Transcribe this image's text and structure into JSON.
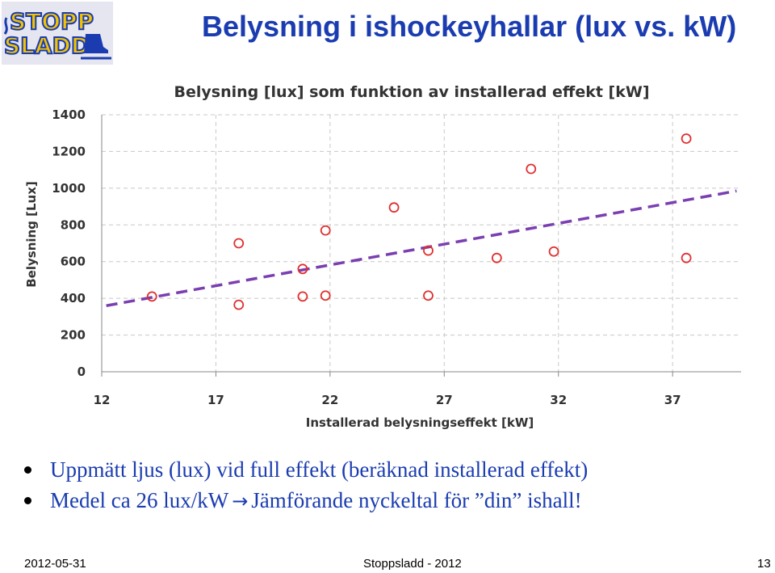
{
  "slide": {
    "title": "Belysning i ishockeyhallar (lux vs. kW)",
    "logo_line1": "STOPP",
    "logo_line2": "SLADD"
  },
  "chart_data": {
    "type": "scatter",
    "title": "Belysning [lux] som funktion av installerad effekt [kW]",
    "xlabel": "Installerad belysningseffekt [kW]",
    "ylabel": "Belysning [Lux]",
    "xlim": [
      12,
      40
    ],
    "ylim": [
      0,
      1400
    ],
    "xticks": [
      12,
      17,
      22,
      27,
      32,
      37
    ],
    "yticks": [
      0,
      200,
      400,
      600,
      800,
      1000,
      1200,
      1400
    ],
    "grid": "dashed",
    "marker_color": "#e03030",
    "trend_color": "#7a3fb0",
    "points": [
      {
        "x": 14.2,
        "y": 410
      },
      {
        "x": 18.0,
        "y": 365
      },
      {
        "x": 18.0,
        "y": 700
      },
      {
        "x": 20.8,
        "y": 560
      },
      {
        "x": 20.8,
        "y": 410
      },
      {
        "x": 21.8,
        "y": 770
      },
      {
        "x": 21.8,
        "y": 415
      },
      {
        "x": 24.8,
        "y": 895
      },
      {
        "x": 26.3,
        "y": 660
      },
      {
        "x": 26.3,
        "y": 415
      },
      {
        "x": 29.3,
        "y": 620
      },
      {
        "x": 30.8,
        "y": 1105
      },
      {
        "x": 31.8,
        "y": 655
      },
      {
        "x": 37.6,
        "y": 1270
      },
      {
        "x": 37.6,
        "y": 620
      }
    ],
    "trendline": [
      {
        "x": 12.2,
        "y": 360
      },
      {
        "x": 39.8,
        "y": 985
      }
    ]
  },
  "bullets": [
    {
      "text": "Uppmätt ljus (lux) vid full effekt (beräknad installerad effekt)"
    },
    {
      "text_before": "Medel ca 26 lux/kW",
      "arrow": "→",
      "text_after": "Jämförande nyckeltal för ”din” ishall!"
    }
  ],
  "footer": {
    "date": "2012-05-31",
    "org": "Stoppsladd - 2012",
    "page": "13"
  },
  "colors": {
    "title": "#1a3cb0",
    "bullet_text": "#1a3cb0",
    "logo_fill": "#f2c300",
    "logo_outline": "#1a3cb0"
  }
}
